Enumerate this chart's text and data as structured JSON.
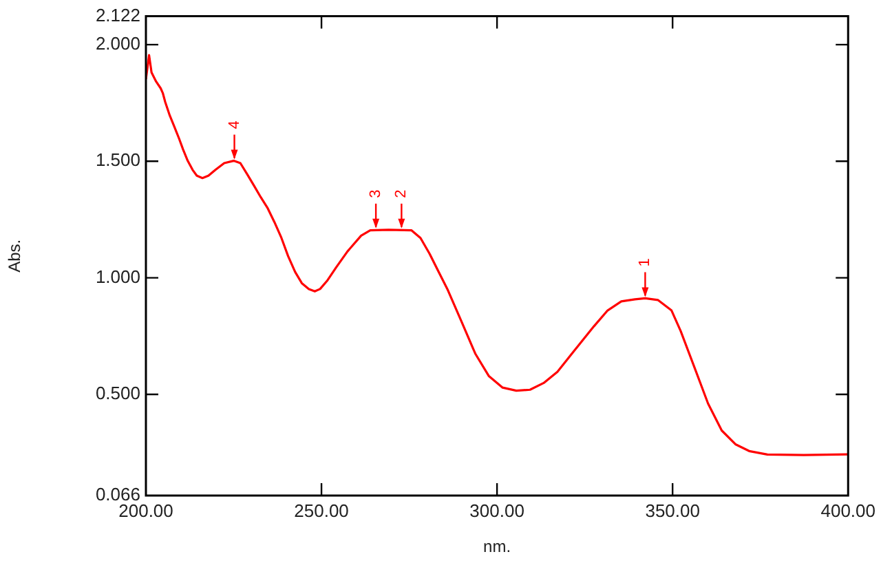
{
  "chart_data": {
    "type": "line",
    "xlabel": "nm.",
    "ylabel": "Abs.",
    "x": [
      200.0,
      200.9,
      201.6,
      202.9,
      204.2,
      204.8,
      205.5,
      206.8,
      208.1,
      209.4,
      210.6,
      211.9,
      213.3,
      214.5,
      216.1,
      217.8,
      219.8,
      222.3,
      225.0,
      226.9,
      228.9,
      230.8,
      232.7,
      234.7,
      236.6,
      238.6,
      240.5,
      242.5,
      244.4,
      246.4,
      248.1,
      249.6,
      251.6,
      254.2,
      257.4,
      261.3,
      263.9,
      269.1,
      275.6,
      278.2,
      280.8,
      283.4,
      286.0,
      289.9,
      293.8,
      297.7,
      301.6,
      305.5,
      309.4,
      313.3,
      317.2,
      322.4,
      327.6,
      331.5,
      335.4,
      339.3,
      342.2,
      345.8,
      349.7,
      352.3,
      356.2,
      360.1,
      364.0,
      367.9,
      371.8,
      377.0,
      387.4,
      400.0
    ],
    "series": [
      {
        "color": "#ff0000",
        "values": [
          1.852,
          1.955,
          1.881,
          1.842,
          1.813,
          1.793,
          1.754,
          1.696,
          1.648,
          1.599,
          1.55,
          1.502,
          1.463,
          1.438,
          1.428,
          1.438,
          1.463,
          1.492,
          1.502,
          1.492,
          1.443,
          1.395,
          1.346,
          1.298,
          1.239,
          1.171,
          1.093,
          1.025,
          0.977,
          0.952,
          0.942,
          0.952,
          0.987,
          1.045,
          1.113,
          1.181,
          1.204,
          1.206,
          1.204,
          1.171,
          1.103,
          1.025,
          0.947,
          0.812,
          0.675,
          0.578,
          0.529,
          0.516,
          0.52,
          0.549,
          0.597,
          0.695,
          0.792,
          0.86,
          0.899,
          0.908,
          0.912,
          0.905,
          0.86,
          0.772,
          0.617,
          0.461,
          0.345,
          0.286,
          0.257,
          0.242,
          0.24,
          0.243
        ]
      }
    ],
    "xlim": [
      200,
      400
    ],
    "ylim": [
      0.066,
      2.122
    ],
    "xticks": [
      {
        "value": 200,
        "label": "200.00"
      },
      {
        "value": 250,
        "label": "250.00"
      },
      {
        "value": 300,
        "label": "300.00"
      },
      {
        "value": 350,
        "label": "350.00"
      },
      {
        "value": 400,
        "label": "400.00"
      }
    ],
    "yticks": [
      {
        "value": 0.066,
        "label": "0.066"
      },
      {
        "value": 0.5,
        "label": "0.500"
      },
      {
        "value": 1,
        "label": "1.000"
      },
      {
        "value": 1.5,
        "label": "1.500"
      },
      {
        "value": 2,
        "label": "2.000"
      },
      {
        "value": 2.122,
        "label": "2.122"
      }
    ],
    "annotations": [
      {
        "text": "1",
        "x": 342.2,
        "y": 0.912
      },
      {
        "text": "2",
        "x": 272.8,
        "y": 1.206
      },
      {
        "text": "3",
        "x": 265.5,
        "y": 1.206
      },
      {
        "text": "4",
        "x": 225.2,
        "y": 1.502
      }
    ],
    "grid": false,
    "legend": false,
    "marker": "none",
    "line_style": "solid"
  }
}
